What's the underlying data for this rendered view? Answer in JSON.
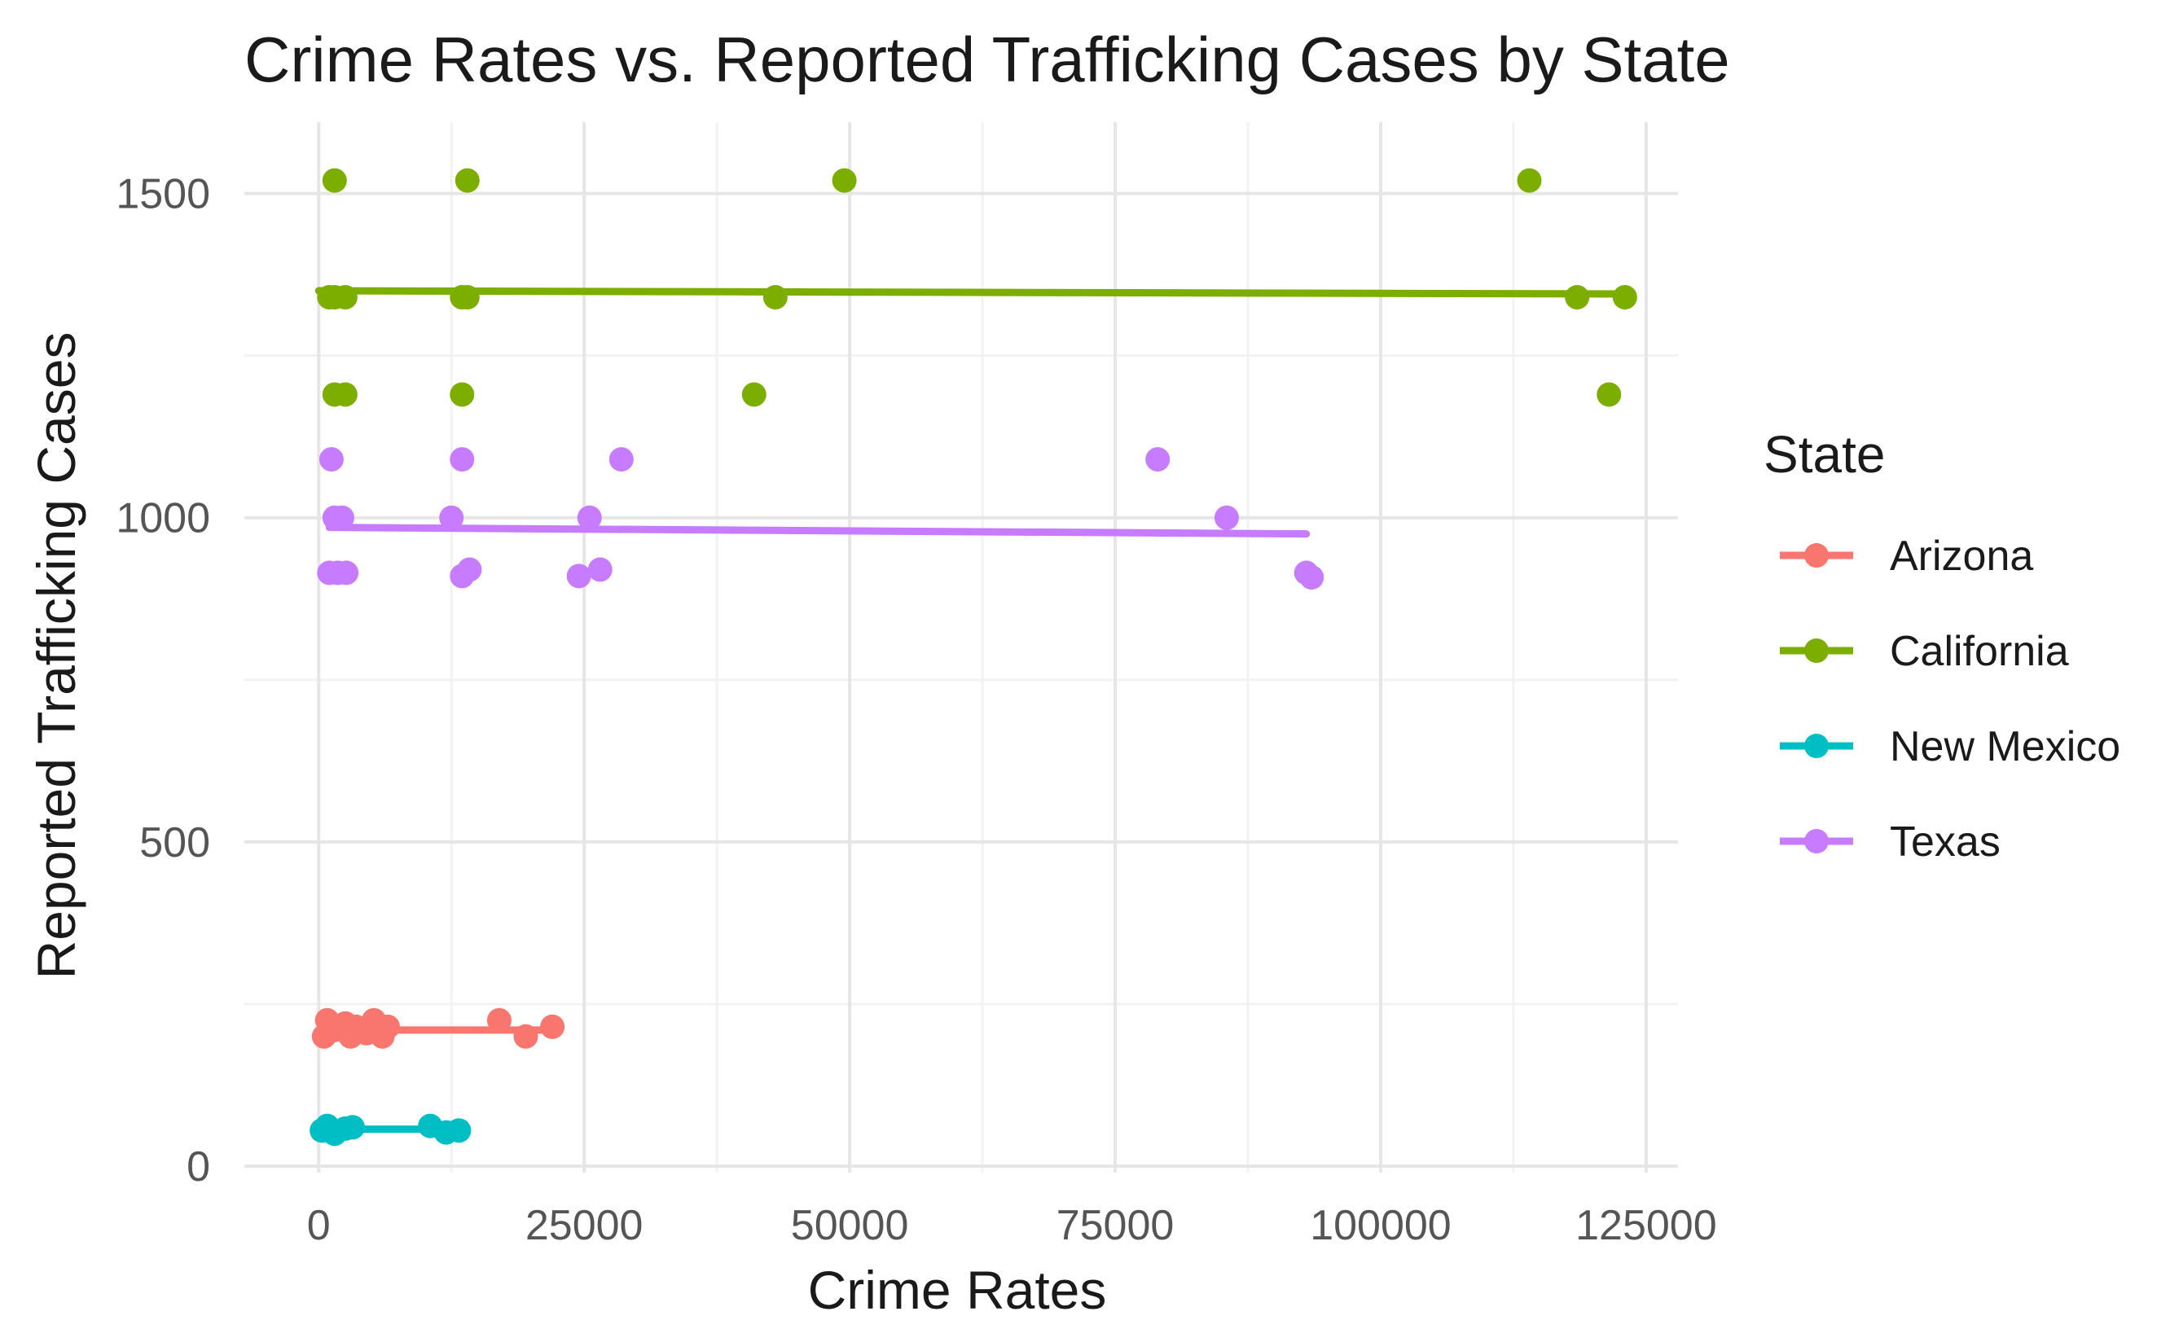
{
  "chart_data": {
    "type": "scatter",
    "title": "Crime Rates vs. Reported Trafficking Cases by State",
    "xlabel": "Crime Rates",
    "ylabel": "Reported Trafficking Cases",
    "xlim": [
      -7000,
      128000
    ],
    "ylim": [
      -10,
      1610
    ],
    "x_ticks": [
      0,
      25000,
      50000,
      75000,
      100000,
      125000
    ],
    "x_tick_labels": [
      "0",
      "25000",
      "50000",
      "75000",
      "100000",
      "125000"
    ],
    "y_ticks": [
      0,
      500,
      1000,
      1500
    ],
    "y_tick_labels": [
      "0",
      "500",
      "1000",
      "1500"
    ],
    "x_minor_ticks": [
      12500,
      37500,
      62500,
      87500,
      112500
    ],
    "y_minor_ticks": [
      250,
      750,
      1250
    ],
    "grid": true,
    "legend": {
      "title": "State",
      "position": "right"
    },
    "series": [
      {
        "name": "Arizona",
        "color": "#F8766D",
        "points": [
          [
            500,
            200
          ],
          [
            800,
            225
          ],
          [
            1500,
            210
          ],
          [
            2500,
            220
          ],
          [
            3000,
            200
          ],
          [
            3500,
            215
          ],
          [
            4500,
            205
          ],
          [
            5200,
            225
          ],
          [
            6000,
            200
          ],
          [
            6500,
            215
          ],
          [
            17000,
            225
          ],
          [
            19500,
            200
          ],
          [
            22000,
            215
          ]
        ],
        "trend": [
          [
            0,
            210
          ],
          [
            22000,
            210
          ]
        ]
      },
      {
        "name": "California",
        "color": "#7CAE00",
        "points": [
          [
            1500,
            1520
          ],
          [
            14000,
            1520
          ],
          [
            49500,
            1520
          ],
          [
            114000,
            1520
          ],
          [
            1000,
            1340
          ],
          [
            1500,
            1340
          ],
          [
            2500,
            1340
          ],
          [
            13500,
            1340
          ],
          [
            14000,
            1340
          ],
          [
            43000,
            1340
          ],
          [
            118500,
            1340
          ],
          [
            123000,
            1340
          ],
          [
            1500,
            1190
          ],
          [
            2500,
            1190
          ],
          [
            13500,
            1190
          ],
          [
            41000,
            1190
          ],
          [
            121500,
            1190
          ]
        ],
        "trend": [
          [
            0,
            1350
          ],
          [
            123000,
            1345
          ]
        ]
      },
      {
        "name": "New Mexico",
        "color": "#00BFC4",
        "points": [
          [
            300,
            55
          ],
          [
            800,
            62
          ],
          [
            1500,
            50
          ],
          [
            2500,
            58
          ],
          [
            3200,
            60
          ],
          [
            10500,
            62
          ],
          [
            12000,
            52
          ],
          [
            13200,
            55
          ]
        ],
        "trend": [
          [
            0,
            57
          ],
          [
            13000,
            57
          ]
        ]
      },
      {
        "name": "Texas",
        "color": "#C77CFF",
        "points": [
          [
            1200,
            1090
          ],
          [
            13500,
            1090
          ],
          [
            28500,
            1090
          ],
          [
            79000,
            1090
          ],
          [
            1500,
            1000
          ],
          [
            2200,
            1000
          ],
          [
            12500,
            1000
          ],
          [
            25500,
            1000
          ],
          [
            85500,
            1000
          ],
          [
            1000,
            915
          ],
          [
            1800,
            915
          ],
          [
            2600,
            915
          ],
          [
            13500,
            910
          ],
          [
            14200,
            920
          ],
          [
            24500,
            910
          ],
          [
            26500,
            920
          ],
          [
            93000,
            915
          ],
          [
            93500,
            908
          ]
        ],
        "trend": [
          [
            1000,
            985
          ],
          [
            93000,
            975
          ]
        ]
      }
    ]
  }
}
